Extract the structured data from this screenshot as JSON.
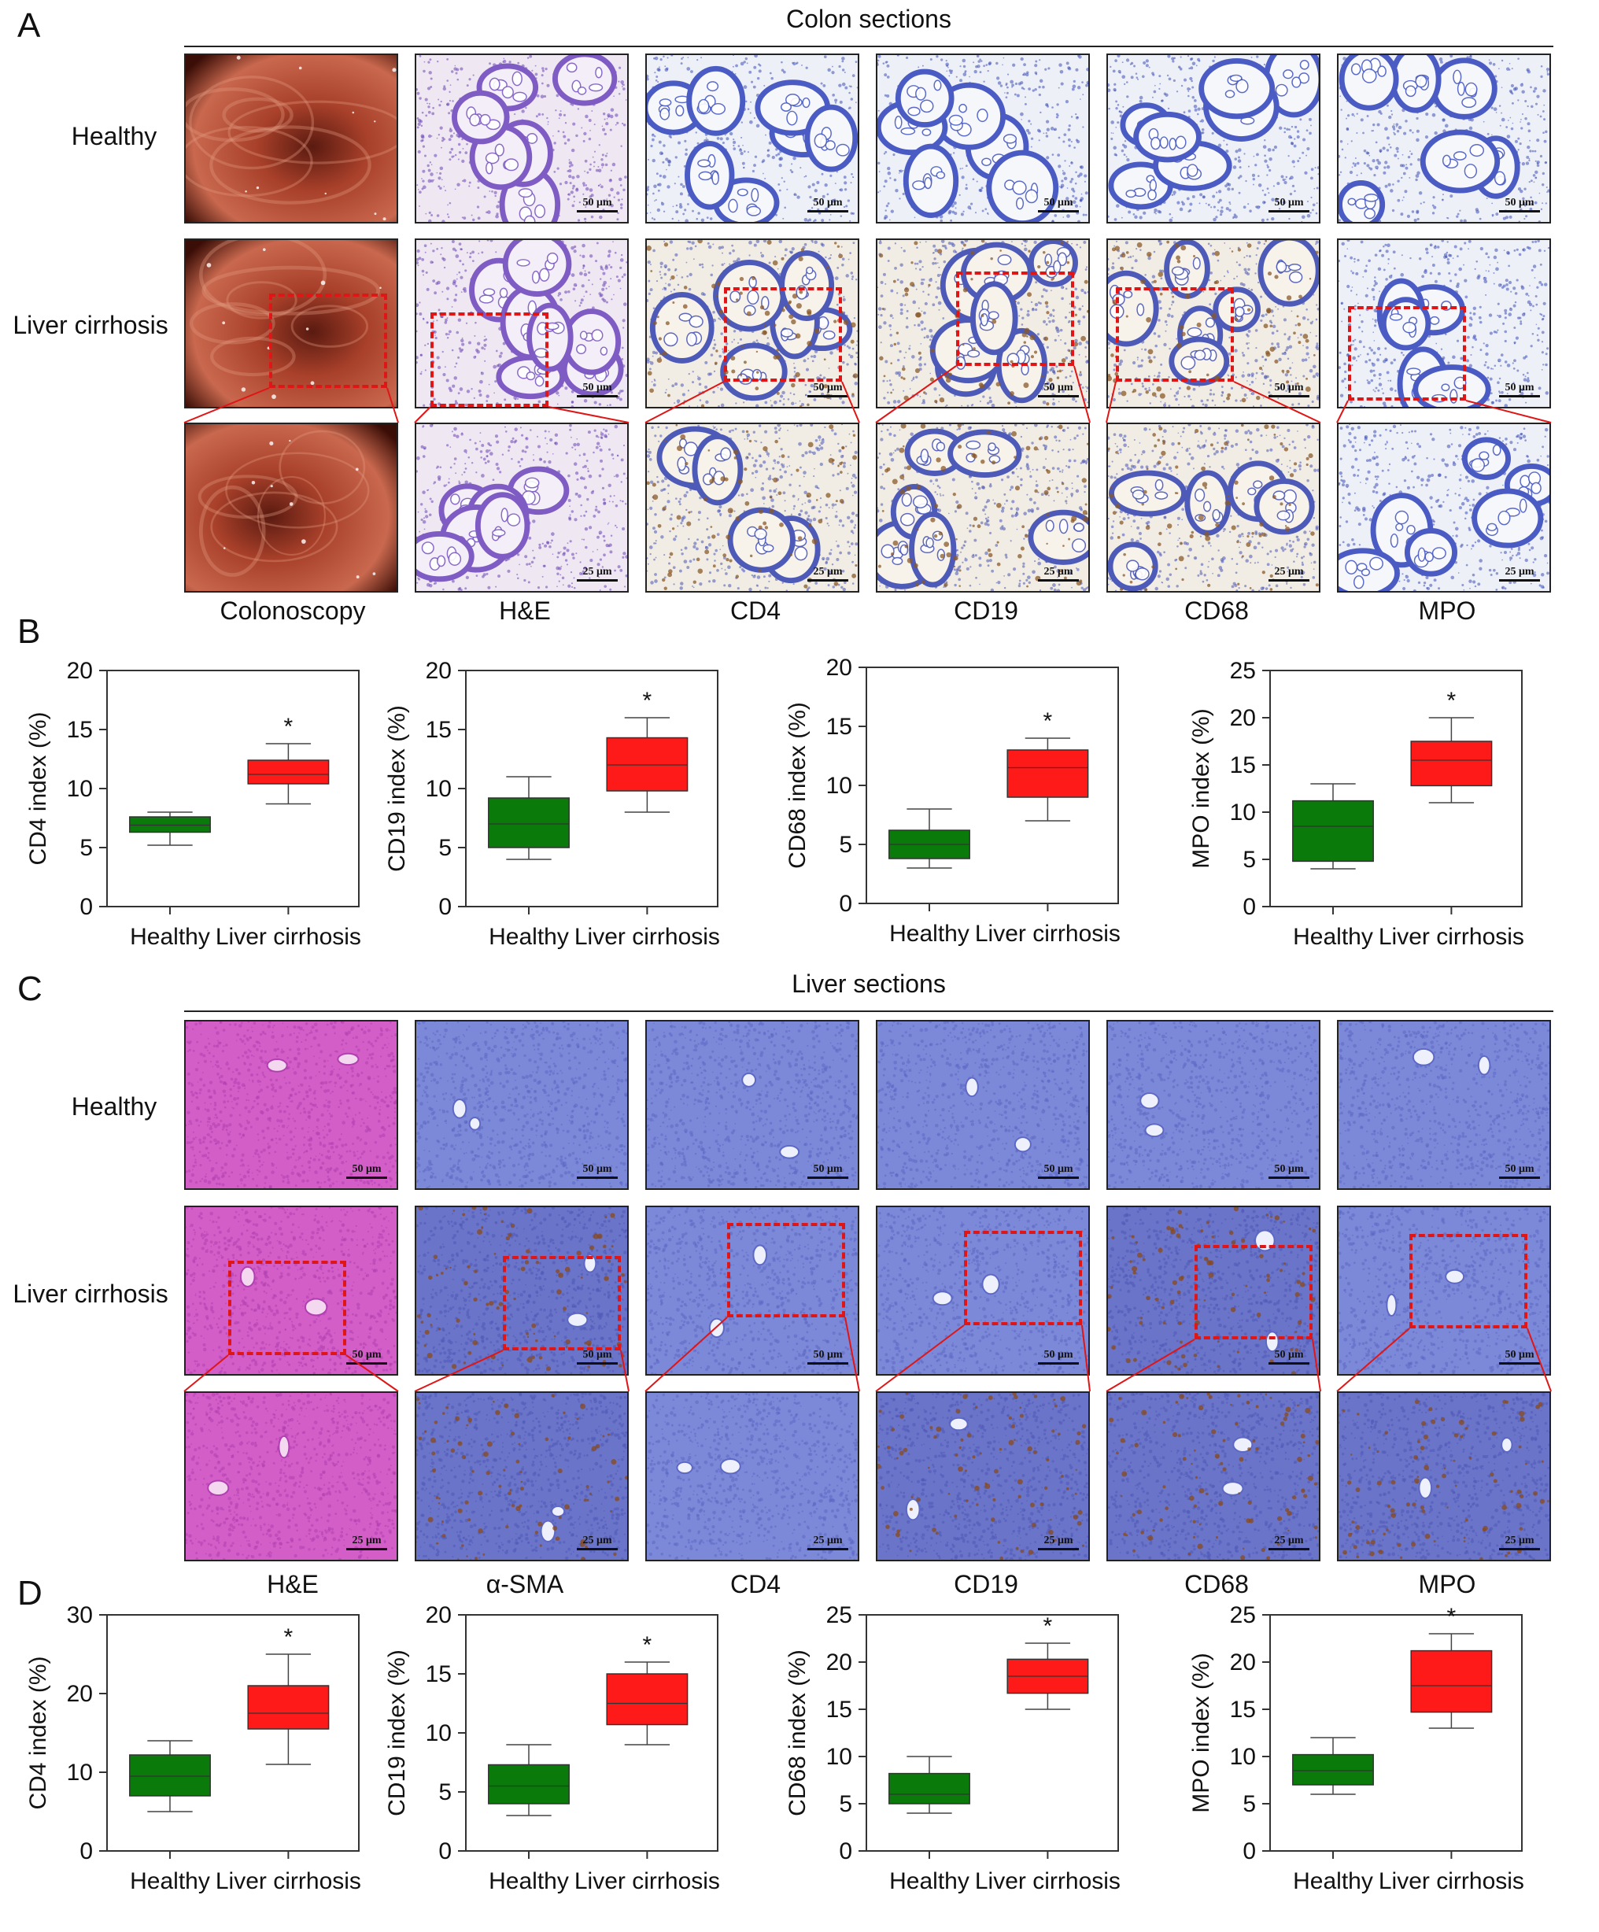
{
  "panel_letters": {
    "A": "A",
    "B": "B",
    "C": "C",
    "D": "D"
  },
  "colon": {
    "title": "Colon sections",
    "row_labels": [
      "Healthy",
      "Liver cirrhosis"
    ],
    "col_labels": [
      "Colonoscopy",
      "H&E",
      "CD4",
      "CD19",
      "CD68",
      "MPO"
    ],
    "scale_main": "50 μm",
    "scale_zoom": "25 μm"
  },
  "liver": {
    "title": "Liver sections",
    "row_labels": [
      "Healthy",
      "Liver cirrhosis"
    ],
    "col_labels": [
      "H&E",
      "α-SMA",
      "CD4",
      "CD19",
      "CD68",
      "MPO"
    ],
    "scale_main": "50 μm",
    "scale_zoom": "25 μm"
  },
  "colors": {
    "healthy": "#0a7a0a",
    "cirrhosis": "#ff1a1a",
    "roi": "#e01515"
  },
  "chart_data": [
    {
      "type": "box",
      "panel": "B",
      "ylabel": "CD4 index (%)",
      "ylim": [
        0,
        20
      ],
      "yticks": [
        0,
        5,
        10,
        15,
        20
      ],
      "categories": [
        "Healthy",
        "Liver cirrhosis"
      ],
      "boxes": [
        {
          "min": 5.2,
          "q1": 6.3,
          "median": 6.9,
          "q3": 7.6,
          "max": 8
        },
        {
          "min": 8.7,
          "q1": 10.4,
          "median": 11.2,
          "q3": 12.4,
          "max": 13.8
        }
      ],
      "significance": "*"
    },
    {
      "type": "box",
      "panel": "B",
      "ylabel": "CD19 index (%)",
      "ylim": [
        0,
        20
      ],
      "yticks": [
        0,
        5,
        10,
        15,
        20
      ],
      "categories": [
        "Healthy",
        "Liver cirrhosis"
      ],
      "boxes": [
        {
          "min": 4,
          "q1": 5,
          "median": 7,
          "q3": 9.2,
          "max": 11
        },
        {
          "min": 8,
          "q1": 9.8,
          "median": 12,
          "q3": 14.3,
          "max": 16
        }
      ],
      "significance": "*"
    },
    {
      "type": "box",
      "panel": "B",
      "ylabel": "CD68 index (%)",
      "ylim": [
        0,
        20
      ],
      "yticks": [
        0,
        5,
        10,
        15,
        20
      ],
      "categories": [
        "Healthy",
        "Liver cirrhosis"
      ],
      "boxes": [
        {
          "min": 3,
          "q1": 3.8,
          "median": 5,
          "q3": 6.2,
          "max": 8
        },
        {
          "min": 7,
          "q1": 9,
          "median": 11.5,
          "q3": 13,
          "max": 14
        }
      ],
      "significance": "*"
    },
    {
      "type": "box",
      "panel": "B",
      "ylabel": "MPO index (%)",
      "ylim": [
        0,
        25
      ],
      "yticks": [
        0,
        5,
        10,
        15,
        20,
        25
      ],
      "categories": [
        "Healthy",
        "Liver cirrhosis"
      ],
      "boxes": [
        {
          "min": 4,
          "q1": 4.8,
          "median": 8.5,
          "q3": 11.2,
          "max": 13
        },
        {
          "min": 11,
          "q1": 12.8,
          "median": 15.5,
          "q3": 17.5,
          "max": 20
        }
      ],
      "significance": "*"
    },
    {
      "type": "box",
      "panel": "D",
      "ylabel": "CD4 index (%)",
      "ylim": [
        0,
        30
      ],
      "yticks": [
        0,
        10,
        20,
        30
      ],
      "categories": [
        "Healthy",
        "Liver cirrhosis"
      ],
      "boxes": [
        {
          "min": 5,
          "q1": 7,
          "median": 9.5,
          "q3": 12.2,
          "max": 14
        },
        {
          "min": 11,
          "q1": 15.5,
          "median": 17.5,
          "q3": 21,
          "max": 25
        }
      ],
      "significance": "*"
    },
    {
      "type": "box",
      "panel": "D",
      "ylabel": "CD19 index (%)",
      "ylim": [
        0,
        20
      ],
      "yticks": [
        0,
        5,
        10,
        15,
        20
      ],
      "categories": [
        "Healthy",
        "Liver cirrhosis"
      ],
      "boxes": [
        {
          "min": 3,
          "q1": 4,
          "median": 5.5,
          "q3": 7.3,
          "max": 9
        },
        {
          "min": 9,
          "q1": 10.7,
          "median": 12.5,
          "q3": 15,
          "max": 16
        }
      ],
      "significance": "*"
    },
    {
      "type": "box",
      "panel": "D",
      "ylabel": "CD68 index (%)",
      "ylim": [
        0,
        25
      ],
      "yticks": [
        0,
        5,
        10,
        15,
        20,
        25
      ],
      "categories": [
        "Healthy",
        "Liver cirrhosis"
      ],
      "boxes": [
        {
          "min": 4,
          "q1": 5,
          "median": 6,
          "q3": 8.2,
          "max": 10
        },
        {
          "min": 15,
          "q1": 16.7,
          "median": 18.5,
          "q3": 20.3,
          "max": 22
        }
      ],
      "significance": "*"
    },
    {
      "type": "box",
      "panel": "D",
      "ylabel": "MPO index (%)",
      "ylim": [
        0,
        25
      ],
      "yticks": [
        0,
        5,
        10,
        15,
        20,
        25
      ],
      "categories": [
        "Healthy",
        "Liver cirrhosis"
      ],
      "boxes": [
        {
          "min": 6,
          "q1": 7,
          "median": 8.5,
          "q3": 10.2,
          "max": 12
        },
        {
          "min": 13,
          "q1": 14.7,
          "median": 17.5,
          "q3": 21.2,
          "max": 23
        }
      ],
      "significance": "*"
    }
  ]
}
